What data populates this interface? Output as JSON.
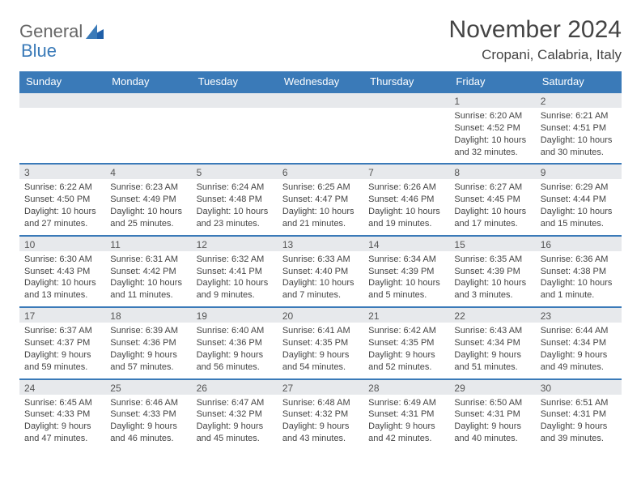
{
  "logo": {
    "part1": "General",
    "part2": "Blue"
  },
  "title": "November 2024",
  "location": "Cropani, Calabria, Italy",
  "colors": {
    "header_bg": "#3a7ab8",
    "date_bar_bg": "#e7e9ec",
    "date_bar_border": "#3a7ab8",
    "text": "#444444",
    "logo_gray": "#666666",
    "logo_blue": "#3a7ab8"
  },
  "day_names": [
    "Sunday",
    "Monday",
    "Tuesday",
    "Wednesday",
    "Thursday",
    "Friday",
    "Saturday"
  ],
  "weeks": [
    [
      {
        "date": "",
        "sunrise": "",
        "sunset": "",
        "daylight": ""
      },
      {
        "date": "",
        "sunrise": "",
        "sunset": "",
        "daylight": ""
      },
      {
        "date": "",
        "sunrise": "",
        "sunset": "",
        "daylight": ""
      },
      {
        "date": "",
        "sunrise": "",
        "sunset": "",
        "daylight": ""
      },
      {
        "date": "",
        "sunrise": "",
        "sunset": "",
        "daylight": ""
      },
      {
        "date": "1",
        "sunrise": "Sunrise: 6:20 AM",
        "sunset": "Sunset: 4:52 PM",
        "daylight": "Daylight: 10 hours and 32 minutes."
      },
      {
        "date": "2",
        "sunrise": "Sunrise: 6:21 AM",
        "sunset": "Sunset: 4:51 PM",
        "daylight": "Daylight: 10 hours and 30 minutes."
      }
    ],
    [
      {
        "date": "3",
        "sunrise": "Sunrise: 6:22 AM",
        "sunset": "Sunset: 4:50 PM",
        "daylight": "Daylight: 10 hours and 27 minutes."
      },
      {
        "date": "4",
        "sunrise": "Sunrise: 6:23 AM",
        "sunset": "Sunset: 4:49 PM",
        "daylight": "Daylight: 10 hours and 25 minutes."
      },
      {
        "date": "5",
        "sunrise": "Sunrise: 6:24 AM",
        "sunset": "Sunset: 4:48 PM",
        "daylight": "Daylight: 10 hours and 23 minutes."
      },
      {
        "date": "6",
        "sunrise": "Sunrise: 6:25 AM",
        "sunset": "Sunset: 4:47 PM",
        "daylight": "Daylight: 10 hours and 21 minutes."
      },
      {
        "date": "7",
        "sunrise": "Sunrise: 6:26 AM",
        "sunset": "Sunset: 4:46 PM",
        "daylight": "Daylight: 10 hours and 19 minutes."
      },
      {
        "date": "8",
        "sunrise": "Sunrise: 6:27 AM",
        "sunset": "Sunset: 4:45 PM",
        "daylight": "Daylight: 10 hours and 17 minutes."
      },
      {
        "date": "9",
        "sunrise": "Sunrise: 6:29 AM",
        "sunset": "Sunset: 4:44 PM",
        "daylight": "Daylight: 10 hours and 15 minutes."
      }
    ],
    [
      {
        "date": "10",
        "sunrise": "Sunrise: 6:30 AM",
        "sunset": "Sunset: 4:43 PM",
        "daylight": "Daylight: 10 hours and 13 minutes."
      },
      {
        "date": "11",
        "sunrise": "Sunrise: 6:31 AM",
        "sunset": "Sunset: 4:42 PM",
        "daylight": "Daylight: 10 hours and 11 minutes."
      },
      {
        "date": "12",
        "sunrise": "Sunrise: 6:32 AM",
        "sunset": "Sunset: 4:41 PM",
        "daylight": "Daylight: 10 hours and 9 minutes."
      },
      {
        "date": "13",
        "sunrise": "Sunrise: 6:33 AM",
        "sunset": "Sunset: 4:40 PM",
        "daylight": "Daylight: 10 hours and 7 minutes."
      },
      {
        "date": "14",
        "sunrise": "Sunrise: 6:34 AM",
        "sunset": "Sunset: 4:39 PM",
        "daylight": "Daylight: 10 hours and 5 minutes."
      },
      {
        "date": "15",
        "sunrise": "Sunrise: 6:35 AM",
        "sunset": "Sunset: 4:39 PM",
        "daylight": "Daylight: 10 hours and 3 minutes."
      },
      {
        "date": "16",
        "sunrise": "Sunrise: 6:36 AM",
        "sunset": "Sunset: 4:38 PM",
        "daylight": "Daylight: 10 hours and 1 minute."
      }
    ],
    [
      {
        "date": "17",
        "sunrise": "Sunrise: 6:37 AM",
        "sunset": "Sunset: 4:37 PM",
        "daylight": "Daylight: 9 hours and 59 minutes."
      },
      {
        "date": "18",
        "sunrise": "Sunrise: 6:39 AM",
        "sunset": "Sunset: 4:36 PM",
        "daylight": "Daylight: 9 hours and 57 minutes."
      },
      {
        "date": "19",
        "sunrise": "Sunrise: 6:40 AM",
        "sunset": "Sunset: 4:36 PM",
        "daylight": "Daylight: 9 hours and 56 minutes."
      },
      {
        "date": "20",
        "sunrise": "Sunrise: 6:41 AM",
        "sunset": "Sunset: 4:35 PM",
        "daylight": "Daylight: 9 hours and 54 minutes."
      },
      {
        "date": "21",
        "sunrise": "Sunrise: 6:42 AM",
        "sunset": "Sunset: 4:35 PM",
        "daylight": "Daylight: 9 hours and 52 minutes."
      },
      {
        "date": "22",
        "sunrise": "Sunrise: 6:43 AM",
        "sunset": "Sunset: 4:34 PM",
        "daylight": "Daylight: 9 hours and 51 minutes."
      },
      {
        "date": "23",
        "sunrise": "Sunrise: 6:44 AM",
        "sunset": "Sunset: 4:34 PM",
        "daylight": "Daylight: 9 hours and 49 minutes."
      }
    ],
    [
      {
        "date": "24",
        "sunrise": "Sunrise: 6:45 AM",
        "sunset": "Sunset: 4:33 PM",
        "daylight": "Daylight: 9 hours and 47 minutes."
      },
      {
        "date": "25",
        "sunrise": "Sunrise: 6:46 AM",
        "sunset": "Sunset: 4:33 PM",
        "daylight": "Daylight: 9 hours and 46 minutes."
      },
      {
        "date": "26",
        "sunrise": "Sunrise: 6:47 AM",
        "sunset": "Sunset: 4:32 PM",
        "daylight": "Daylight: 9 hours and 45 minutes."
      },
      {
        "date": "27",
        "sunrise": "Sunrise: 6:48 AM",
        "sunset": "Sunset: 4:32 PM",
        "daylight": "Daylight: 9 hours and 43 minutes."
      },
      {
        "date": "28",
        "sunrise": "Sunrise: 6:49 AM",
        "sunset": "Sunset: 4:31 PM",
        "daylight": "Daylight: 9 hours and 42 minutes."
      },
      {
        "date": "29",
        "sunrise": "Sunrise: 6:50 AM",
        "sunset": "Sunset: 4:31 PM",
        "daylight": "Daylight: 9 hours and 40 minutes."
      },
      {
        "date": "30",
        "sunrise": "Sunrise: 6:51 AM",
        "sunset": "Sunset: 4:31 PM",
        "daylight": "Daylight: 9 hours and 39 minutes."
      }
    ]
  ]
}
